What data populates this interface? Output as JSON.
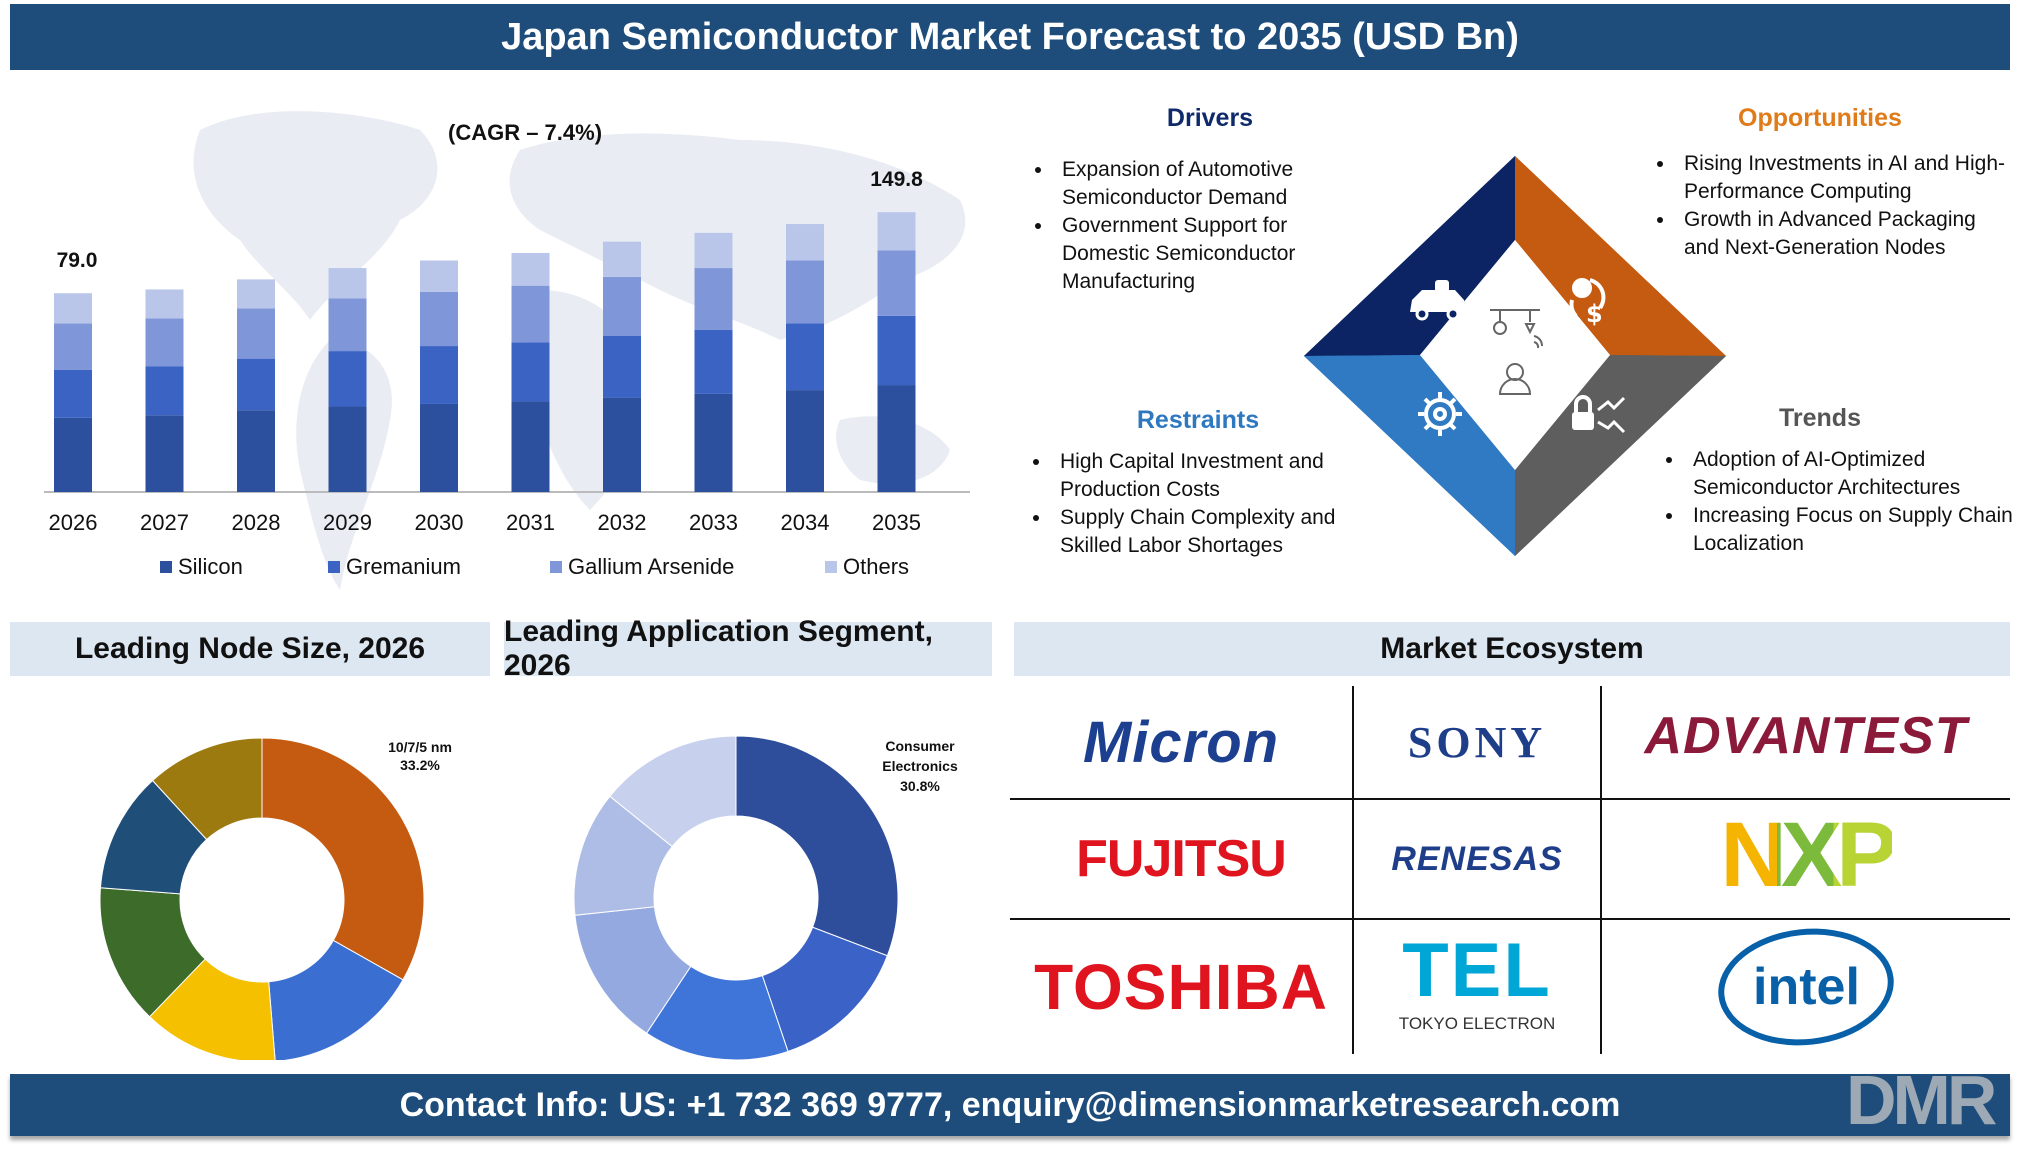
{
  "title": "Japan Semiconductor Market Forecast to 2035 (USD Bn)",
  "chart_data": [
    {
      "type": "bar",
      "stacked": true,
      "categories": [
        "2026",
        "2027",
        "2028",
        "2029",
        "2030",
        "2031",
        "2032",
        "2033",
        "2034",
        "2035"
      ],
      "series": [
        {
          "name": "Silicon",
          "color": "#2c4f9e",
          "values": [
            29.5,
            30.5,
            32.5,
            34,
            35,
            36,
            37.5,
            39,
            40.5,
            42.5
          ]
        },
        {
          "name": "Gremanium",
          "color": "#3a63c3",
          "values": [
            19,
            19.5,
            20.5,
            22,
            23,
            23.5,
            24.5,
            25.5,
            26.5,
            27.5
          ]
        },
        {
          "name": "Gallium Arsenide",
          "color": "#7f96d8",
          "values": [
            18.5,
            19,
            20,
            21,
            21.5,
            22.5,
            23.5,
            24.5,
            25,
            26
          ]
        },
        {
          "name": "Others",
          "color": "#b9c6ea",
          "values": [
            12,
            11.5,
            11.5,
            12,
            12.5,
            13,
            14,
            14,
            14.5,
            15.2
          ]
        }
      ],
      "data_labels": [
        {
          "category": "2026",
          "text": "79.0"
        },
        {
          "category": "2035",
          "text": "149.8"
        }
      ],
      "annotation": "(CAGR – 7.4%)",
      "legend_position": "bottom",
      "ylim": [
        0,
        155
      ]
    },
    {
      "type": "pie",
      "title": "Leading Node Size, 2026",
      "donut": true,
      "slices": [
        {
          "label": "10/7/5 nm",
          "value": 33.2,
          "color": "#c55a11",
          "display": "33.2%"
        },
        {
          "label": "",
          "value": 15.5,
          "color": "#3a6fd1"
        },
        {
          "label": "",
          "value": 13.5,
          "color": "#f5c000"
        },
        {
          "label": "",
          "value": 14,
          "color": "#3d6b2a"
        },
        {
          "label": "",
          "value": 12,
          "color": "#1f4e79"
        },
        {
          "label": "",
          "value": 11.8,
          "color": "#9c7a10"
        }
      ]
    },
    {
      "type": "pie",
      "title": "Leading Application Segment, 2026",
      "donut": true,
      "slices": [
        {
          "label": "Consumer Electronics",
          "value": 30.8,
          "color": "#2e4e9b",
          "display": "30.8%"
        },
        {
          "label": "",
          "value": 14,
          "color": "#3b63c7"
        },
        {
          "label": "",
          "value": 14.5,
          "color": "#3f74d9"
        },
        {
          "label": "",
          "value": 14,
          "color": "#93a9e0"
        },
        {
          "label": "",
          "value": 12.5,
          "color": "#aebde6"
        },
        {
          "label": "",
          "value": 14.2,
          "color": "#c7d1ee"
        }
      ]
    }
  ],
  "quadrants": {
    "drivers": {
      "title": "Drivers",
      "color": "#0f2a6b",
      "items": [
        "Expansion of Automotive Semiconductor Demand",
        "Government Support for Domestic Semiconductor Manufacturing"
      ]
    },
    "opportunities": {
      "title": "Opportunities",
      "color": "#e07b1a",
      "items": [
        "Rising Investments in AI and High-Performance Computing",
        "Growth in Advanced Packaging and Next-Generation Nodes"
      ]
    },
    "restraints": {
      "title": "Restraints",
      "color": "#2e78c0",
      "items": [
        "High Capital Investment and Production Costs",
        "Supply Chain Complexity and Skilled Labor Shortages"
      ]
    },
    "trends": {
      "title": "Trends",
      "color": "#555555",
      "items": [
        "Adoption of AI-Optimized Semiconductor Architectures",
        "Increasing Focus on Supply Chain Localization"
      ]
    }
  },
  "diamond_colors": {
    "top_left": "#0c2463",
    "top_right": "#c55a11",
    "bottom_left": "#2f7ac2",
    "bottom_right": "#5e5e5e"
  },
  "ecosystem": {
    "title": "Market Ecosystem",
    "logos": [
      "Micron",
      "SONY",
      "ADVANTEST",
      "FUJITSU",
      "RENESAS",
      "NXP",
      "TOSHIBA",
      "TEL",
      "intel"
    ],
    "tel_sub": "TOKYO ELECTRON"
  },
  "footer": "Contact Info: US: +1 732 369 9777, enquiry@dimensionmarketresearch.com",
  "watermark": "DMR"
}
